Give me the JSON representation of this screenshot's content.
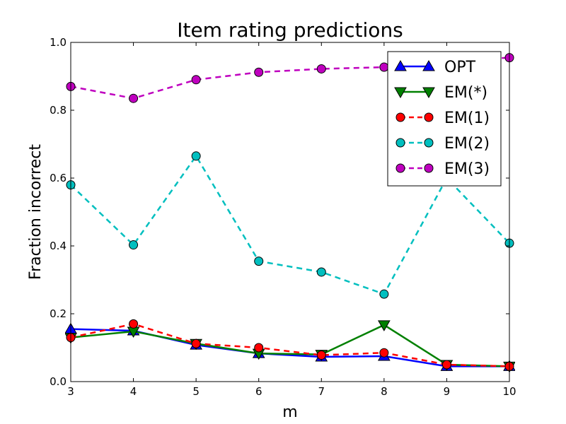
{
  "chart_data": {
    "type": "line",
    "title": "Item rating predictions",
    "xlabel": "m",
    "ylabel": "Fraction incorrect",
    "xlim": [
      3,
      10
    ],
    "ylim": [
      0.0,
      1.0
    ],
    "x_ticks": [
      "3",
      "4",
      "5",
      "6",
      "7",
      "8",
      "9",
      "10"
    ],
    "y_ticks": [
      "0.0",
      "0.2",
      "0.4",
      "0.6",
      "0.8",
      "1.0"
    ],
    "grid": false,
    "legend_position": "top-right",
    "x": [
      3,
      4,
      5,
      6,
      7,
      8,
      9,
      10
    ],
    "series": [
      {
        "name": "OPT",
        "color": "#0000ff",
        "marker": "triangle-up",
        "dashed": false,
        "values": [
          0.155,
          0.15,
          0.108,
          0.083,
          0.073,
          0.075,
          0.045,
          0.045
        ]
      },
      {
        "name": "EM(*)",
        "color": "#008000",
        "marker": "triangle-down",
        "dashed": false,
        "values": [
          0.13,
          0.148,
          0.112,
          0.083,
          0.08,
          0.167,
          0.05,
          0.045
        ]
      },
      {
        "name": "EM(1)",
        "color": "#ff0000",
        "marker": "circle",
        "dashed": true,
        "values": [
          0.13,
          0.17,
          0.112,
          0.1,
          0.078,
          0.085,
          0.05,
          0.045
        ]
      },
      {
        "name": "EM(2)",
        "color": "#00bfbf",
        "marker": "circle",
        "dashed": true,
        "values": [
          0.58,
          0.403,
          0.665,
          0.355,
          0.323,
          0.258,
          0.6,
          0.408
        ]
      },
      {
        "name": "EM(3)",
        "color": "#bf00bf",
        "marker": "circle",
        "dashed": true,
        "values": [
          0.87,
          0.835,
          0.89,
          0.912,
          0.922,
          0.927,
          0.945,
          0.955
        ]
      }
    ]
  }
}
